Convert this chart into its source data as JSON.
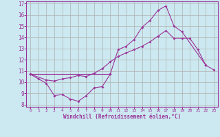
{
  "xlabel": "Windchill (Refroidissement éolien,°C)",
  "x": [
    0,
    1,
    2,
    3,
    4,
    5,
    6,
    7,
    8,
    9,
    10,
    11,
    12,
    13,
    14,
    15,
    16,
    17,
    18,
    19,
    20,
    21,
    22,
    23
  ],
  "line1_x": [
    0,
    1,
    2,
    3,
    4,
    5,
    6,
    7,
    8,
    9,
    10
  ],
  "line1_y": [
    10.7,
    10.3,
    9.9,
    8.8,
    8.9,
    8.5,
    8.3,
    8.8,
    9.5,
    9.6,
    10.7
  ],
  "line2_x": [
    0,
    2,
    3,
    4,
    5,
    6,
    7,
    8,
    9,
    10,
    11,
    12,
    13,
    14,
    15,
    16,
    17,
    18,
    19,
    20,
    21,
    22,
    23
  ],
  "line2_y": [
    10.7,
    10.2,
    10.1,
    10.3,
    10.4,
    10.6,
    10.5,
    10.8,
    11.2,
    11.8,
    12.3,
    12.6,
    12.9,
    13.2,
    13.6,
    14.1,
    14.6,
    13.9,
    13.9,
    13.9,
    12.9,
    11.5,
    11.1
  ],
  "line3_x": [
    0,
    10,
    11,
    12,
    13,
    14,
    15,
    16,
    17,
    18,
    19,
    22
  ],
  "line3_y": [
    10.7,
    10.7,
    12.9,
    13.2,
    13.8,
    14.9,
    15.5,
    16.4,
    16.8,
    15.0,
    14.5,
    11.5
  ],
  "line_color": "#993399",
  "bg_color": "#cce8f0",
  "grid_color": "#b0b0b0",
  "ylim": [
    8,
    17
  ],
  "xlim": [
    -0.5,
    23.5
  ],
  "yticks": [
    8,
    9,
    10,
    11,
    12,
    13,
    14,
    15,
    16,
    17
  ],
  "xticks": [
    0,
    1,
    2,
    3,
    4,
    5,
    6,
    7,
    8,
    9,
    10,
    11,
    12,
    13,
    14,
    15,
    16,
    17,
    18,
    19,
    20,
    21,
    22,
    23
  ]
}
